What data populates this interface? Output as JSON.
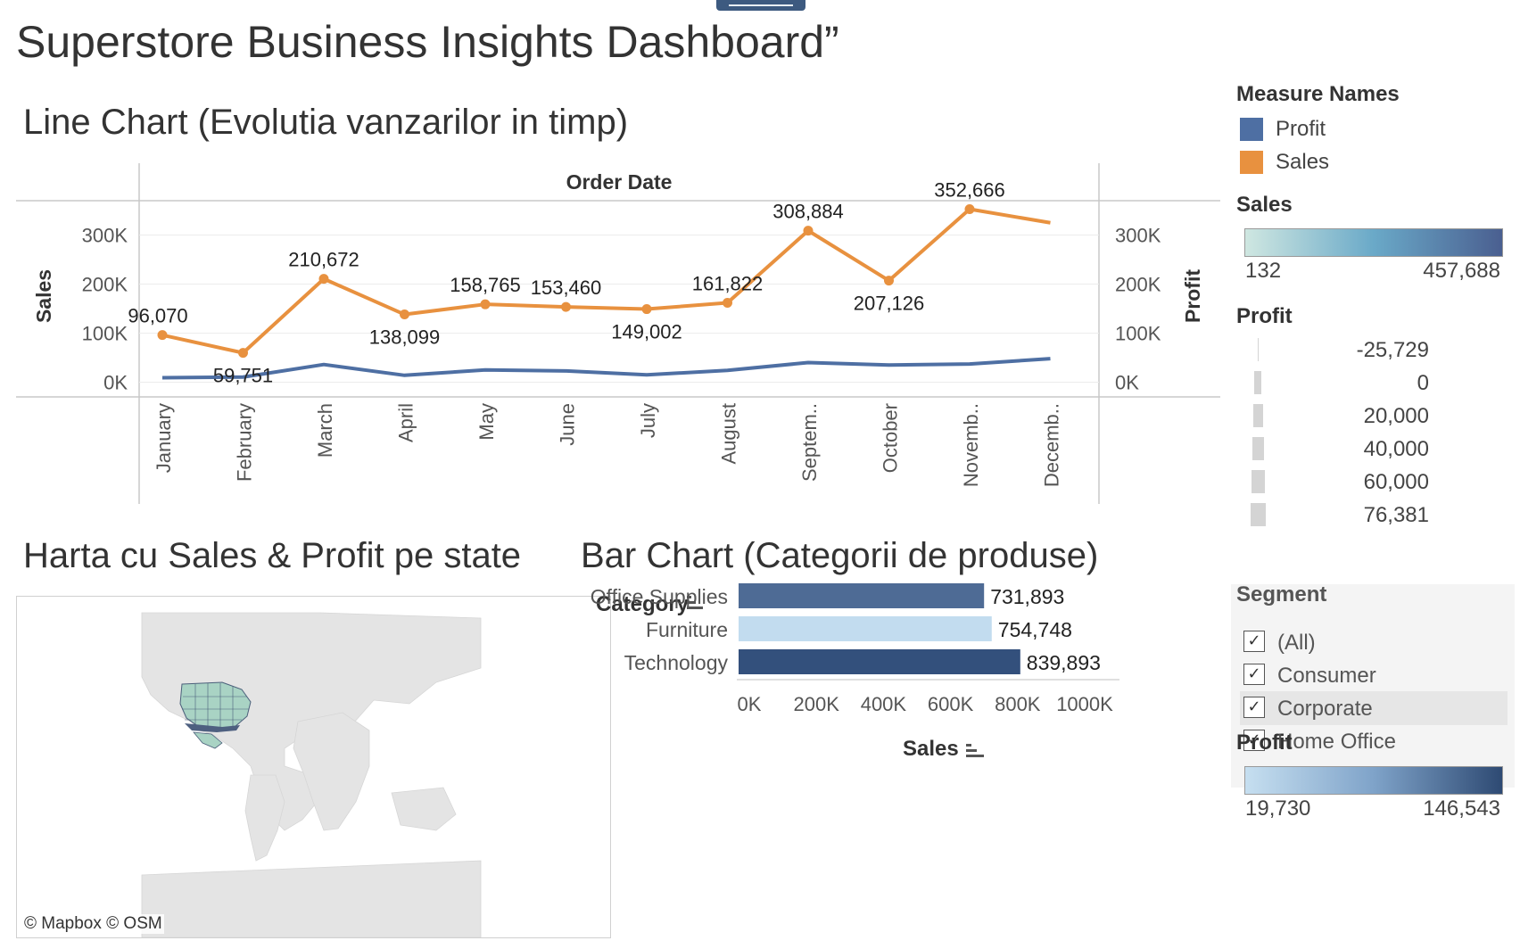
{
  "dashboard": {
    "title": "Superstore Business Insights Dashboard”"
  },
  "line_section": {
    "title": "Line Chart (Evolutia vanzarilor in timp)",
    "header": "Order Date",
    "left_axis_title": "Sales",
    "right_axis_title": "Profit"
  },
  "map_section": {
    "title": "Harta cu Sales & Profit pe state",
    "credit": "© Mapbox  © OSM"
  },
  "bar_section": {
    "title": "Bar Chart (Categorii de produse)",
    "category_header": "Category",
    "axis_title": "Sales"
  },
  "legend": {
    "measure_names": {
      "title": "Measure Names",
      "items": [
        {
          "label": "Profit",
          "color": "#4e6fa3"
        },
        {
          "label": "Sales",
          "color": "#e8913f"
        }
      ]
    },
    "sales_color": {
      "title": "Sales",
      "min": "132",
      "max": "457,688",
      "colors": [
        "#cfe7e1",
        "#6aa9c8",
        "#4a5f90"
      ]
    },
    "profit_size": {
      "title": "Profit",
      "items": [
        "-25,729",
        "0",
        "20,000",
        "40,000",
        "60,000",
        "76,381"
      ]
    },
    "segment": {
      "title": "Segment",
      "items": [
        {
          "label": "(All)",
          "checked": true,
          "highlight": false
        },
        {
          "label": "Consumer",
          "checked": true,
          "highlight": false
        },
        {
          "label": "Corporate",
          "checked": true,
          "highlight": true
        },
        {
          "label": "Home Office",
          "checked": true,
          "highlight": false
        }
      ]
    },
    "profit_color": {
      "title": "Profit",
      "min": "19,730",
      "max": "146,543",
      "colors": [
        "#c6dff0",
        "#7fa3c9",
        "#2e4a73"
      ]
    }
  },
  "chart_data": [
    {
      "type": "line",
      "x": [
        "January",
        "February",
        "March",
        "April",
        "May",
        "June",
        "July",
        "August",
        "Septem..",
        "October",
        "Novemb..",
        "Decemb.."
      ],
      "series": [
        {
          "name": "Sales",
          "color": "#e8913f",
          "axis": "left",
          "values": [
            96070,
            59751,
            210672,
            138099,
            158765,
            153460,
            149002,
            161822,
            308884,
            207126,
            352666,
            325000
          ],
          "labels": [
            "96,070",
            "59,751",
            "210,672",
            "138,099",
            "158,765",
            "153,460",
            "149,002",
            "161,822",
            "308,884",
            "207,126",
            "352,666",
            ""
          ]
        },
        {
          "name": "Profit",
          "color": "#4e6fa3",
          "axis": "right",
          "values": [
            9000,
            10500,
            36000,
            14000,
            25000,
            23000,
            15000,
            24000,
            40000,
            35000,
            37000,
            48000
          ]
        }
      ],
      "ylabel": "Sales",
      "y2label": "Profit",
      "ylim": [
        -30000,
        370000
      ],
      "yticks": [
        {
          "v": 0,
          "t": "0K"
        },
        {
          "v": 100000,
          "t": "100K"
        },
        {
          "v": 200000,
          "t": "200K"
        },
        {
          "v": 300000,
          "t": "300K"
        }
      ],
      "grid": true
    },
    {
      "type": "bar",
      "orientation": "horizontal",
      "categories": [
        "Office Supplies",
        "Furniture",
        "Technology"
      ],
      "values": [
        731893,
        754748,
        839893
      ],
      "labels": [
        "731,893",
        "754,748",
        "839,893"
      ],
      "colors": [
        "#4e6b95",
        "#c2dcef",
        "#33507c"
      ],
      "xlim": [
        0,
        1150000
      ],
      "xticks": [
        {
          "v": 0,
          "t": "0K"
        },
        {
          "v": 200000,
          "t": "200K"
        },
        {
          "v": 400000,
          "t": "400K"
        },
        {
          "v": 600000,
          "t": "600K"
        },
        {
          "v": 800000,
          "t": "800K"
        },
        {
          "v": 1000000,
          "t": "1000K"
        }
      ],
      "xlabel": "Sales",
      "ylabel": "Category"
    }
  ]
}
